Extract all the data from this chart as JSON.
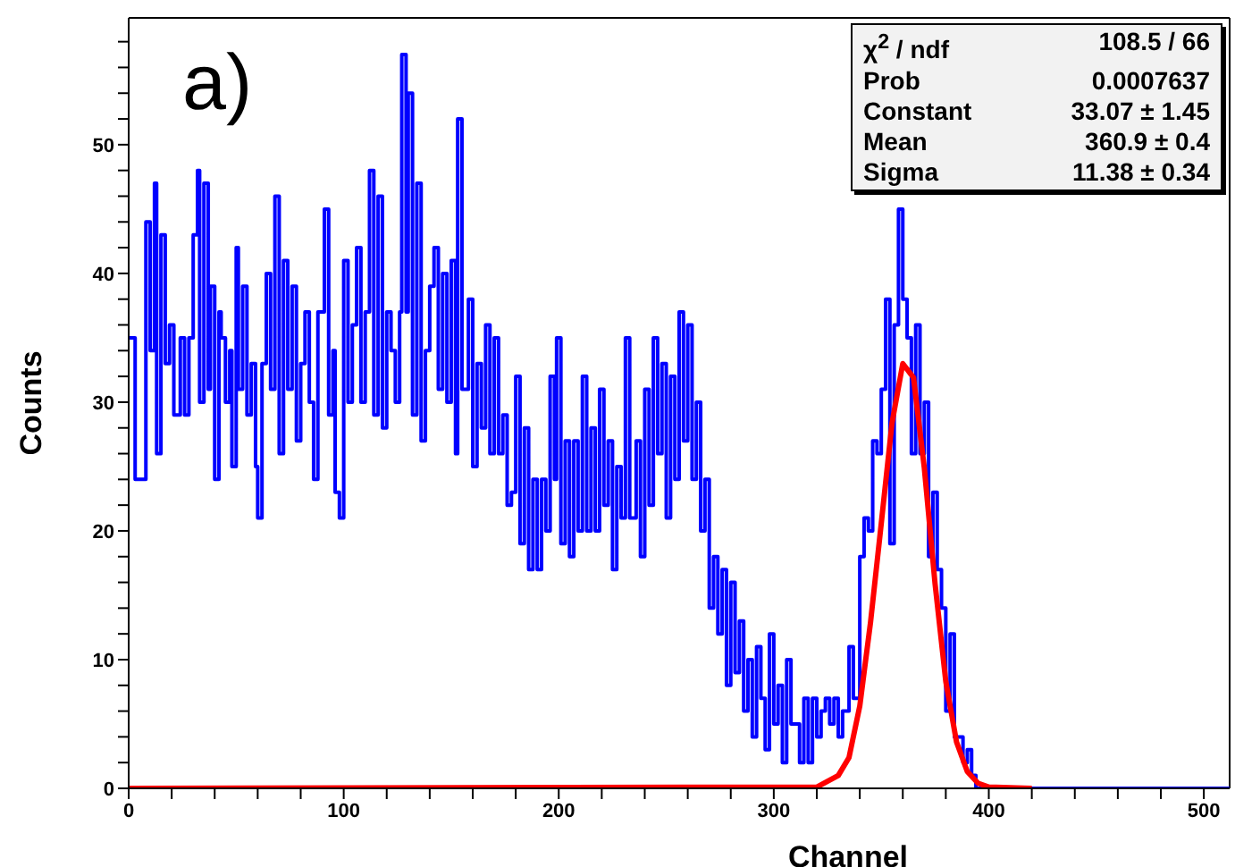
{
  "chart_data": {
    "type": "step",
    "xlabel": "Channel",
    "ylabel": "Counts",
    "xlim": [
      0,
      512
    ],
    "ylim": [
      0,
      59.85
    ],
    "xticks": [
      0,
      {
        "value": 20,
        "label": null
      },
      {
        "value": 40,
        "label": null
      },
      {
        "value": 60,
        "label": null
      },
      {
        "value": 80,
        "label": null
      },
      100,
      {
        "value": 120,
        "label": null
      },
      {
        "value": 140,
        "label": null
      },
      {
        "value": 160,
        "label": null
      },
      {
        "value": 180,
        "label": null
      },
      200,
      {
        "value": 220,
        "label": null
      },
      {
        "value": 240,
        "label": null
      },
      {
        "value": 260,
        "label": null
      },
      {
        "value": 280,
        "label": null
      },
      300,
      {
        "value": 320,
        "label": null
      },
      {
        "value": 340,
        "label": null
      },
      {
        "value": 360,
        "label": null
      },
      {
        "value": 380,
        "label": null
      },
      400,
      {
        "value": 420,
        "label": null
      },
      {
        "value": 440,
        "label": null
      },
      {
        "value": 460,
        "label": null
      },
      {
        "value": 480,
        "label": null
      },
      500
    ],
    "yticks": [
      0,
      {
        "value": 2,
        "label": null
      },
      {
        "value": 4,
        "label": null
      },
      {
        "value": 6,
        "label": null
      },
      {
        "value": 8,
        "label": null
      },
      10,
      {
        "value": 12,
        "label": null
      },
      {
        "value": 14,
        "label": null
      },
      {
        "value": 16,
        "label": null
      },
      {
        "value": 18,
        "label": null
      },
      20,
      {
        "value": 22,
        "label": null
      },
      {
        "value": 24,
        "label": null
      },
      {
        "value": 26,
        "label": null
      },
      {
        "value": 28,
        "label": null
      },
      30,
      {
        "value": 32,
        "label": null
      },
      {
        "value": 34,
        "label": null
      },
      {
        "value": 36,
        "label": null
      },
      {
        "value": 38,
        "label": null
      },
      40,
      {
        "value": 42,
        "label": null
      },
      {
        "value": 44,
        "label": null
      },
      {
        "value": 46,
        "label": null
      },
      {
        "value": 48,
        "label": null
      },
      50,
      {
        "value": 52,
        "label": null
      },
      {
        "value": 54,
        "label": null
      },
      {
        "value": 56,
        "label": null
      },
      {
        "value": 58,
        "label": null
      }
    ],
    "grid": false,
    "legend": false,
    "marker": "none",
    "annotations": [
      "a)",
      "χ$^{2}$ / ndf",
      "108.5 / 66",
      "Prob",
      "0.0007637",
      "Constant",
      "33.07 ± 1.45",
      "Mean",
      "360.9 ± 0.4",
      "Sigma",
      "11.38 ± 0.34"
    ],
    "series": [
      {
        "type": "step",
        "color": "#0000ff",
        "x": [
          0,
          3,
          8,
          10,
          12,
          13,
          15,
          17,
          19,
          21,
          24,
          26,
          28,
          30,
          32,
          33,
          35,
          37,
          38,
          40,
          42,
          43,
          45,
          47,
          48,
          50,
          51,
          53,
          55,
          57,
          59,
          60,
          62,
          64,
          66,
          68,
          70,
          72,
          74,
          76,
          78,
          80,
          82,
          84,
          86,
          88,
          90,
          91,
          93,
          95,
          96,
          98,
          100,
          102,
          104,
          106,
          108,
          110,
          112,
          114,
          116,
          118,
          120,
          122,
          124,
          126,
          127,
          129,
          130,
          132,
          134,
          136,
          138,
          140,
          142,
          144,
          146,
          148,
          150,
          152,
          153,
          155,
          158,
          160,
          162,
          164,
          166,
          168,
          170,
          172,
          174,
          176,
          178,
          180,
          182,
          184,
          186,
          188,
          190,
          192,
          194,
          196,
          198,
          199,
          201,
          203,
          205,
          207,
          209,
          211,
          213,
          215,
          217,
          219,
          221,
          223,
          225,
          227,
          229,
          231,
          233,
          236,
          238,
          240,
          242,
          244,
          246,
          248,
          250,
          252,
          254,
          256,
          258,
          260,
          262,
          264,
          266,
          268,
          270,
          272,
          274,
          276,
          278,
          280,
          282,
          284,
          286,
          288,
          290,
          292,
          294,
          296,
          298,
          300,
          302,
          304,
          306,
          308,
          310,
          312,
          314,
          316,
          318,
          320,
          322,
          324,
          326,
          328,
          330,
          332,
          335,
          337,
          340,
          342,
          344,
          346,
          348,
          350,
          352,
          354,
          356,
          358,
          360,
          362,
          364,
          366,
          368,
          370,
          372,
          374,
          376,
          378,
          380,
          382,
          384,
          386,
          388,
          390,
          392,
          394,
          400,
          512
        ],
        "values": [
          35,
          24,
          44,
          34,
          47,
          26,
          43,
          33,
          36,
          29,
          35,
          29,
          35,
          43,
          48,
          30,
          47,
          31,
          39,
          24,
          37,
          35,
          30,
          34,
          25,
          42,
          31,
          39,
          29,
          33,
          25,
          21,
          33,
          40,
          31,
          46,
          26,
          41,
          31,
          39,
          27,
          33,
          37,
          30,
          24,
          37,
          37,
          45,
          29,
          34,
          23,
          21,
          41,
          30,
          36,
          42,
          30,
          37,
          48,
          29,
          46,
          28,
          37,
          34,
          30,
          37,
          57,
          37,
          54,
          29,
          47,
          27,
          34,
          39,
          42,
          31,
          40,
          30,
          41,
          26,
          52,
          31,
          38,
          25,
          33,
          28,
          36,
          26,
          35,
          26,
          29,
          22,
          23,
          32,
          19,
          28,
          17,
          24,
          17,
          24,
          20,
          32,
          24,
          35,
          19,
          27,
          18,
          27,
          20,
          32,
          20,
          28,
          20,
          31,
          22,
          27,
          17,
          25,
          21,
          35,
          21,
          27,
          18,
          31,
          22,
          35,
          26,
          33,
          21,
          32,
          24,
          37,
          27,
          36,
          24,
          30,
          20,
          24,
          14,
          18,
          12,
          17,
          8,
          16,
          9,
          13,
          6,
          10,
          4,
          11,
          7,
          3,
          12,
          5,
          8,
          2,
          10,
          5,
          5,
          2,
          7,
          2,
          7,
          4,
          6,
          7,
          5,
          7,
          4,
          6,
          11,
          7,
          18,
          21,
          20,
          27,
          26,
          31,
          38,
          19,
          36,
          45,
          38,
          35,
          26,
          36,
          26,
          30,
          18,
          23,
          17,
          14,
          6,
          12,
          4,
          4,
          2,
          3,
          1,
          0,
          0,
          0
        ]
      },
      {
        "type": "line",
        "color": "#ff0000",
        "x": [
          0,
          320,
          330,
          335,
          340,
          345,
          350,
          355,
          360,
          365,
          370,
          375,
          380,
          385,
          390,
          395,
          400,
          420
        ],
        "values": [
          0,
          0.1,
          1.0,
          2.4,
          6.4,
          12.9,
          20.6,
          28.4,
          33.0,
          31.9,
          24.9,
          15.9,
          8.3,
          3.6,
          1.3,
          0.4,
          0.1,
          0
        ]
      }
    ]
  }
}
